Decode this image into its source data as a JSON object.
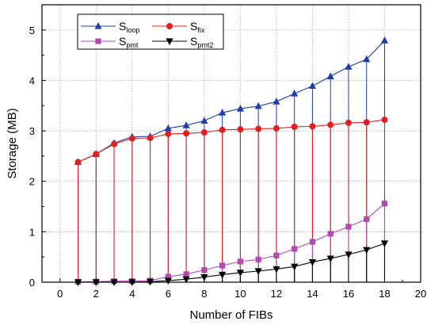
{
  "chart_data": {
    "type": "line",
    "xlabel": "Number of FIBs",
    "ylabel": "Storage (MB)",
    "xlim": [
      -1,
      20
    ],
    "ylim": [
      0,
      5.5
    ],
    "x_ticks": [
      0,
      2,
      4,
      6,
      8,
      10,
      12,
      14,
      16,
      18,
      20
    ],
    "y_ticks": [
      0,
      1,
      2,
      3,
      4,
      5
    ],
    "grid": true,
    "legend_position": "top-left",
    "x": [
      1,
      2,
      3,
      4,
      5,
      6,
      7,
      8,
      9,
      10,
      11,
      12,
      13,
      14,
      15,
      16,
      17,
      18
    ],
    "series": [
      {
        "name": "S",
        "sub": "loop",
        "color": "#1f3fa8",
        "marker": "triangle-up",
        "values": [
          2.38,
          2.54,
          2.76,
          2.88,
          2.89,
          3.05,
          3.11,
          3.2,
          3.36,
          3.44,
          3.49,
          3.58,
          3.74,
          3.89,
          4.08,
          4.27,
          4.42,
          4.79
        ]
      },
      {
        "name": "S",
        "sub": "fix",
        "color": "#e02020",
        "marker": "circle",
        "values": [
          2.38,
          2.54,
          2.74,
          2.85,
          2.86,
          2.94,
          2.95,
          2.97,
          3.02,
          3.03,
          3.04,
          3.05,
          3.08,
          3.09,
          3.12,
          3.16,
          3.17,
          3.22
        ]
      },
      {
        "name": "S",
        "sub": "pmt",
        "color": "#b04ab0",
        "marker": "square",
        "values": [
          0.01,
          0.01,
          0.02,
          0.02,
          0.03,
          0.11,
          0.16,
          0.24,
          0.33,
          0.41,
          0.45,
          0.53,
          0.66,
          0.8,
          0.96,
          1.1,
          1.25,
          1.56
        ]
      },
      {
        "name": "S",
        "sub": "pmt2",
        "color": "#000000",
        "marker": "triangle-down",
        "values": [
          0.0,
          0.0,
          0.0,
          0.0,
          0.01,
          0.03,
          0.06,
          0.1,
          0.15,
          0.19,
          0.22,
          0.26,
          0.31,
          0.4,
          0.47,
          0.55,
          0.64,
          0.77
        ]
      }
    ]
  }
}
